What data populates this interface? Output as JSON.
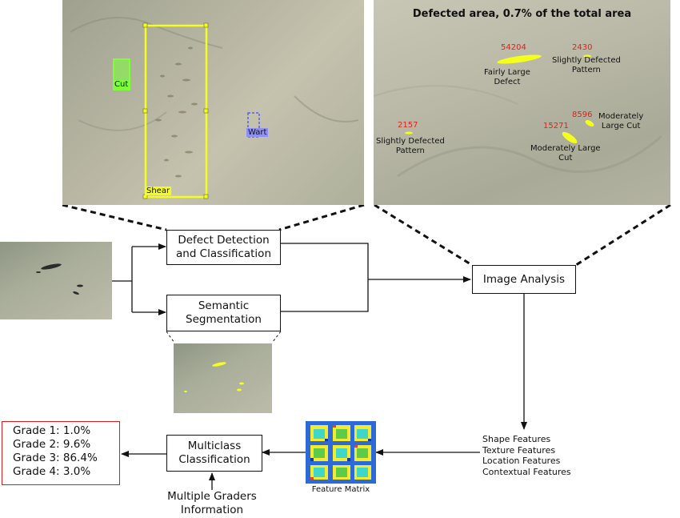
{
  "detection_panel": {
    "tags": {
      "cut": "Cut",
      "shear": "Shear",
      "wart": "Wart"
    }
  },
  "analysis_panel": {
    "title": "Defected area, 0.7% of the total area",
    "regions": [
      {
        "value": "54204",
        "label": "Fairly Large\nDefect"
      },
      {
        "value": "2430",
        "label": "Slightly Defected\nPattern"
      },
      {
        "value": "2157",
        "label": "Slightly Defected\nPattern"
      },
      {
        "value": "8596",
        "label": "Moderately\nLarge Cut"
      },
      {
        "value": "15271",
        "label": "Moderately Large\nCut"
      }
    ]
  },
  "pipeline": {
    "defect_detection": "Defect Detection\nand Classification",
    "semantic_segmentation": "Semantic\nSegmentation",
    "image_analysis": "Image Analysis",
    "features": [
      "Shape Features",
      "Texture Features",
      "Location Features",
      "Contextual Features"
    ],
    "feature_matrix_label": "Feature Matrix",
    "multiclass": "Multiclass\nClassification",
    "graders": "Multiple Graders\nInformation",
    "grades": [
      "Grade 1: 1.0%",
      "Grade 2: 9.6%",
      "Grade 3: 86.4%",
      "Grade 4: 3.0%"
    ]
  },
  "colors": {
    "leather": "#b9b7a6",
    "highlight_yellow": "#f4ff1c",
    "cut_green": "#7dff3a",
    "wart_blue": "#5a5cf0",
    "grade_border": "#d92020",
    "number_red": "#e0211d"
  }
}
